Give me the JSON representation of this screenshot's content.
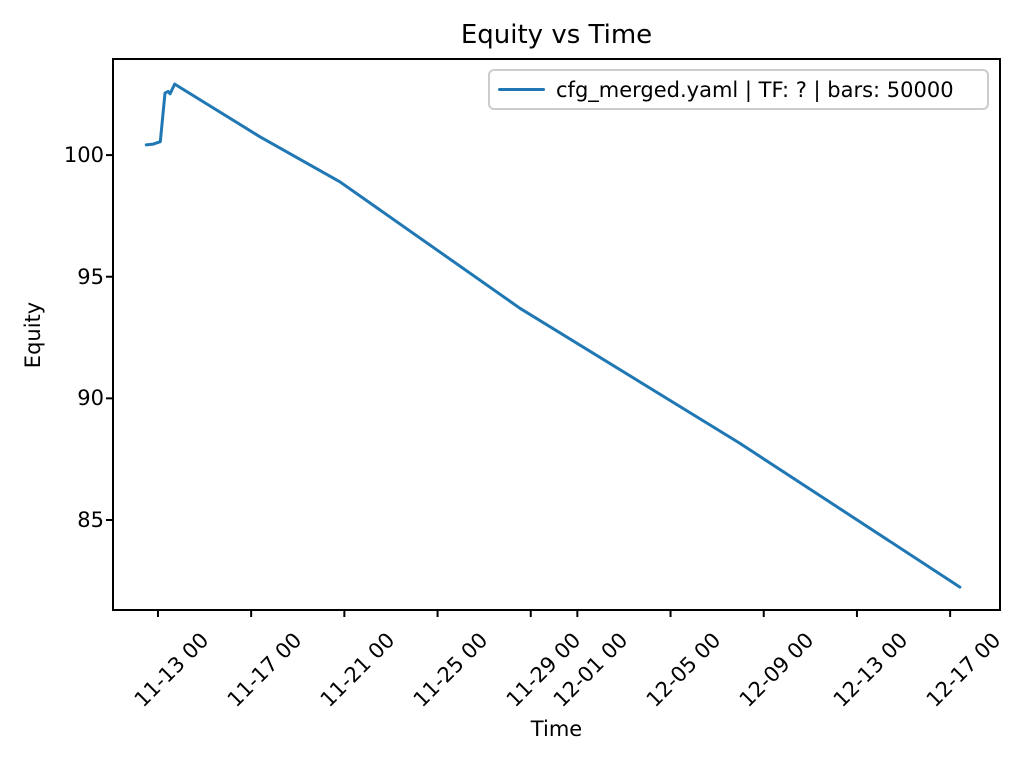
{
  "chart_data": {
    "type": "line",
    "title": "Equity vs Time",
    "xlabel": "Time",
    "ylabel": "Equity",
    "grid": false,
    "legend": {
      "position": "upper right",
      "entries": [
        {
          "label": "cfg_merged.yaml | TF: ? | bars: 50000",
          "color": "#1f77b4"
        }
      ]
    },
    "x_axis": {
      "unit": "days (0 = 11-13 00:00)",
      "range": [
        -1.93,
        36.14
      ],
      "ticks": [
        {
          "value": 0,
          "label": "11-13 00"
        },
        {
          "value": 4,
          "label": "11-17 00"
        },
        {
          "value": 8,
          "label": "11-21 00"
        },
        {
          "value": 12,
          "label": "11-25 00"
        },
        {
          "value": 16,
          "label": "11-29 00"
        },
        {
          "value": 18,
          "label": "12-01 00"
        },
        {
          "value": 22,
          "label": "12-05 00"
        },
        {
          "value": 26,
          "label": "12-09 00"
        },
        {
          "value": 30,
          "label": "12-13 00"
        },
        {
          "value": 34,
          "label": "12-17 00"
        }
      ]
    },
    "y_axis": {
      "range": [
        81.3,
        103.95
      ],
      "ticks": [
        {
          "value": 85,
          "label": "85"
        },
        {
          "value": 90,
          "label": "90"
        },
        {
          "value": 95,
          "label": "95"
        },
        {
          "value": 100,
          "label": "100"
        }
      ]
    },
    "series": [
      {
        "name": "cfg_merged.yaml | TF: ? | bars: 50000",
        "color": "#1f77b4",
        "points": [
          [
            -0.5,
            100.42
          ],
          [
            -0.2,
            100.45
          ],
          [
            0.1,
            100.55
          ],
          [
            0.3,
            102.55
          ],
          [
            0.44,
            102.62
          ],
          [
            0.52,
            102.52
          ],
          [
            0.62,
            102.72
          ],
          [
            0.72,
            102.92
          ],
          [
            4.38,
            100.75
          ],
          [
            7.81,
            98.9
          ],
          [
            15.54,
            93.7
          ],
          [
            24.98,
            88.15
          ],
          [
            34.42,
            82.24
          ]
        ]
      }
    ]
  },
  "colors": {
    "line": "#1f77b4",
    "spine": "#000000",
    "legend_border": "#cccccc",
    "background": "#ffffff"
  }
}
